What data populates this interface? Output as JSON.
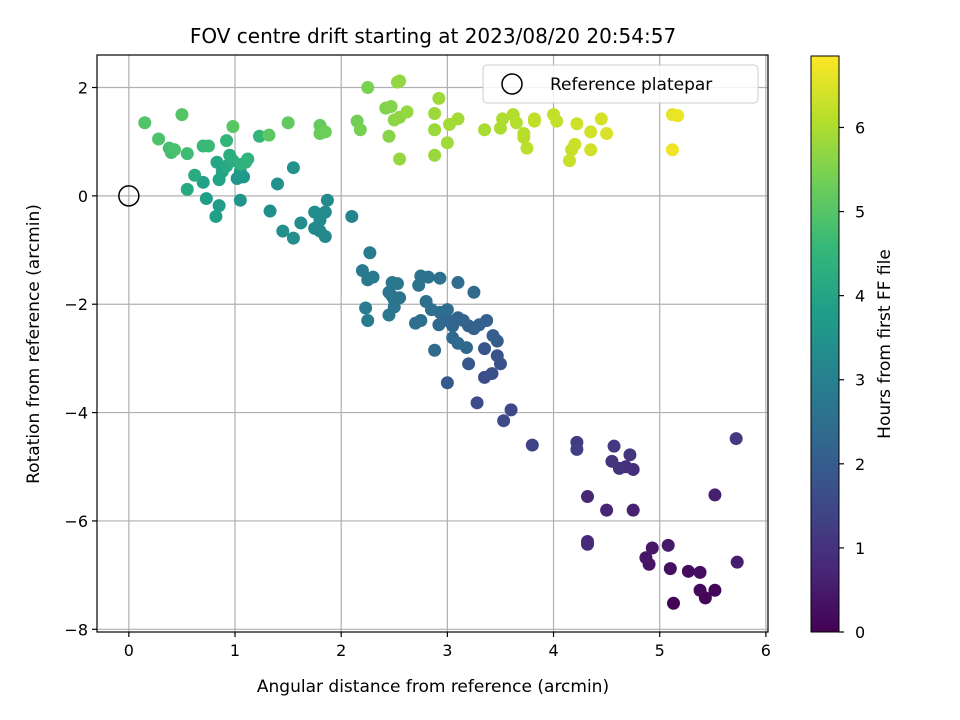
{
  "chart_data": {
    "type": "scatter",
    "title": "FOV centre drift starting at 2023/08/20 20:54:57",
    "xlabel": "Angular distance from reference (arcmin)",
    "ylabel": "Rotation from reference (arcmin)",
    "xlim": [
      -0.3,
      6.02
    ],
    "ylim": [
      -8.05,
      2.6
    ],
    "xticks": [
      0,
      1,
      2,
      3,
      4,
      5,
      6
    ],
    "yticks": [
      -8,
      -6,
      -4,
      -2,
      0,
      2
    ],
    "grid": true,
    "legend": {
      "label": "Reference platepar",
      "placement": "top-right"
    },
    "reference_point": {
      "x": 0,
      "y": 0
    },
    "colorbar": {
      "label": "Hours from first FF file",
      "range": [
        0,
        6.85
      ],
      "ticks": [
        0,
        1,
        2,
        3,
        4,
        5,
        6
      ],
      "colormap": "viridis",
      "colormap_stops": [
        "#440154",
        "#482878",
        "#3e4989",
        "#31688e",
        "#26828e",
        "#1f9e89",
        "#35b779",
        "#6ece58",
        "#b5de2b",
        "#fde725"
      ]
    },
    "points": [
      {
        "x": 5.13,
        "y": -7.52,
        "h": 0.05
      },
      {
        "x": 5.43,
        "y": -7.42,
        "h": 0.1
      },
      {
        "x": 5.52,
        "y": -7.28,
        "h": 0.12
      },
      {
        "x": 5.38,
        "y": -7.28,
        "h": 0.15
      },
      {
        "x": 5.27,
        "y": -6.93,
        "h": 0.2
      },
      {
        "x": 5.38,
        "y": -6.95,
        "h": 0.25
      },
      {
        "x": 5.1,
        "y": -6.88,
        "h": 0.3
      },
      {
        "x": 4.9,
        "y": -6.8,
        "h": 0.35
      },
      {
        "x": 4.87,
        "y": -6.68,
        "h": 0.4
      },
      {
        "x": 4.93,
        "y": -6.5,
        "h": 0.45
      },
      {
        "x": 5.08,
        "y": -6.45,
        "h": 0.5
      },
      {
        "x": 5.73,
        "y": -6.76,
        "h": 0.55
      },
      {
        "x": 5.52,
        "y": -5.52,
        "h": 0.6
      },
      {
        "x": 4.75,
        "y": -5.8,
        "h": 0.65
      },
      {
        "x": 4.5,
        "y": -5.8,
        "h": 0.7
      },
      {
        "x": 4.32,
        "y": -5.55,
        "h": 0.75
      },
      {
        "x": 4.32,
        "y": -6.38,
        "h": 0.8
      },
      {
        "x": 4.32,
        "y": -6.43,
        "h": 0.85
      },
      {
        "x": 4.75,
        "y": -5.05,
        "h": 0.9
      },
      {
        "x": 4.68,
        "y": -5.0,
        "h": 0.95
      },
      {
        "x": 4.62,
        "y": -5.03,
        "h": 1.0
      },
      {
        "x": 4.55,
        "y": -4.9,
        "h": 1.05
      },
      {
        "x": 4.72,
        "y": -4.78,
        "h": 1.1
      },
      {
        "x": 4.57,
        "y": -4.62,
        "h": 1.15
      },
      {
        "x": 5.72,
        "y": -4.48,
        "h": 1.2
      },
      {
        "x": 4.22,
        "y": -4.55,
        "h": 1.25
      },
      {
        "x": 4.22,
        "y": -4.68,
        "h": 1.3
      },
      {
        "x": 3.8,
        "y": -4.6,
        "h": 1.4
      },
      {
        "x": 3.6,
        "y": -3.95,
        "h": 1.5
      },
      {
        "x": 3.53,
        "y": -4.15,
        "h": 1.55
      },
      {
        "x": 3.28,
        "y": -3.82,
        "h": 1.6
      },
      {
        "x": 3.35,
        "y": -3.35,
        "h": 1.65
      },
      {
        "x": 3.42,
        "y": -3.28,
        "h": 1.7
      },
      {
        "x": 3.5,
        "y": -3.1,
        "h": 1.75
      },
      {
        "x": 3.47,
        "y": -2.95,
        "h": 1.8
      },
      {
        "x": 3.35,
        "y": -2.82,
        "h": 1.85
      },
      {
        "x": 3.2,
        "y": -3.1,
        "h": 1.9
      },
      {
        "x": 3.0,
        "y": -3.45,
        "h": 1.95
      },
      {
        "x": 3.47,
        "y": -2.68,
        "h": 2.0
      },
      {
        "x": 3.43,
        "y": -2.58,
        "h": 2.05
      },
      {
        "x": 3.37,
        "y": -2.3,
        "h": 2.1
      },
      {
        "x": 3.3,
        "y": -2.38,
        "h": 2.12
      },
      {
        "x": 3.25,
        "y": -2.45,
        "h": 2.14
      },
      {
        "x": 3.2,
        "y": -2.4,
        "h": 2.16
      },
      {
        "x": 3.15,
        "y": -2.3,
        "h": 2.18
      },
      {
        "x": 3.1,
        "y": -2.25,
        "h": 2.2
      },
      {
        "x": 3.05,
        "y": -2.4,
        "h": 2.22
      },
      {
        "x": 3.02,
        "y": -2.32,
        "h": 2.24
      },
      {
        "x": 2.98,
        "y": -2.2,
        "h": 2.26
      },
      {
        "x": 2.92,
        "y": -2.38,
        "h": 2.28
      },
      {
        "x": 3.18,
        "y": -2.8,
        "h": 2.3
      },
      {
        "x": 3.1,
        "y": -2.72,
        "h": 2.32
      },
      {
        "x": 3.05,
        "y": -2.62,
        "h": 2.34
      },
      {
        "x": 2.88,
        "y": -2.85,
        "h": 2.36
      },
      {
        "x": 3.25,
        "y": -1.78,
        "h": 2.38
      },
      {
        "x": 3.1,
        "y": -1.6,
        "h": 2.4
      },
      {
        "x": 3.0,
        "y": -2.1,
        "h": 2.42
      },
      {
        "x": 2.93,
        "y": -2.15,
        "h": 2.44
      },
      {
        "x": 2.85,
        "y": -2.1,
        "h": 2.46
      },
      {
        "x": 2.8,
        "y": -1.95,
        "h": 2.48
      },
      {
        "x": 2.75,
        "y": -2.3,
        "h": 2.5
      },
      {
        "x": 2.7,
        "y": -2.35,
        "h": 2.52
      },
      {
        "x": 2.93,
        "y": -1.52,
        "h": 2.54
      },
      {
        "x": 2.82,
        "y": -1.5,
        "h": 2.56
      },
      {
        "x": 2.75,
        "y": -1.48,
        "h": 2.58
      },
      {
        "x": 2.73,
        "y": -1.65,
        "h": 2.6
      },
      {
        "x": 2.55,
        "y": -1.88,
        "h": 2.62
      },
      {
        "x": 2.5,
        "y": -1.92,
        "h": 2.64
      },
      {
        "x": 2.48,
        "y": -1.85,
        "h": 2.66
      },
      {
        "x": 2.45,
        "y": -1.78,
        "h": 2.68
      },
      {
        "x": 2.5,
        "y": -2.05,
        "h": 2.7
      },
      {
        "x": 2.45,
        "y": -2.2,
        "h": 2.72
      },
      {
        "x": 2.53,
        "y": -1.62,
        "h": 2.74
      },
      {
        "x": 2.48,
        "y": -1.6,
        "h": 2.76
      },
      {
        "x": 2.3,
        "y": -1.5,
        "h": 2.78
      },
      {
        "x": 2.25,
        "y": -1.55,
        "h": 2.8
      },
      {
        "x": 2.2,
        "y": -1.38,
        "h": 2.82
      },
      {
        "x": 2.27,
        "y": -1.05,
        "h": 2.84
      },
      {
        "x": 2.25,
        "y": -2.3,
        "h": 2.86
      },
      {
        "x": 2.23,
        "y": -2.07,
        "h": 2.88
      },
      {
        "x": 2.1,
        "y": -0.38,
        "h": 3.1
      },
      {
        "x": 1.85,
        "y": -0.75,
        "h": 3.2
      },
      {
        "x": 1.8,
        "y": -0.65,
        "h": 3.22
      },
      {
        "x": 1.75,
        "y": -0.6,
        "h": 3.24
      },
      {
        "x": 1.8,
        "y": -0.45,
        "h": 3.26
      },
      {
        "x": 1.85,
        "y": -0.3,
        "h": 3.28
      },
      {
        "x": 1.87,
        "y": -0.08,
        "h": 3.3
      },
      {
        "x": 1.75,
        "y": -0.3,
        "h": 3.32
      },
      {
        "x": 1.62,
        "y": -0.5,
        "h": 3.34
      },
      {
        "x": 1.55,
        "y": -0.78,
        "h": 3.36
      },
      {
        "x": 1.45,
        "y": -0.65,
        "h": 3.38
      },
      {
        "x": 1.33,
        "y": -0.28,
        "h": 3.4
      },
      {
        "x": 1.4,
        "y": 0.22,
        "h": 3.45
      },
      {
        "x": 1.55,
        "y": 0.52,
        "h": 3.5
      },
      {
        "x": 1.05,
        "y": -0.08,
        "h": 3.55
      },
      {
        "x": 1.02,
        "y": 0.32,
        "h": 3.6
      },
      {
        "x": 1.08,
        "y": 0.35,
        "h": 3.65
      },
      {
        "x": 1.05,
        "y": 0.45,
        "h": 3.7
      },
      {
        "x": 0.85,
        "y": -0.18,
        "h": 3.75
      },
      {
        "x": 0.82,
        "y": -0.38,
        "h": 3.8
      },
      {
        "x": 0.73,
        "y": -0.05,
        "h": 3.85
      },
      {
        "x": 0.7,
        "y": 0.25,
        "h": 3.9
      },
      {
        "x": 0.85,
        "y": 0.3,
        "h": 3.95
      },
      {
        "x": 0.88,
        "y": 0.45,
        "h": 4.0
      },
      {
        "x": 0.83,
        "y": 0.62,
        "h": 4.05
      },
      {
        "x": 0.92,
        "y": 0.55,
        "h": 4.1
      },
      {
        "x": 0.55,
        "y": 0.12,
        "h": 4.15
      },
      {
        "x": 0.62,
        "y": 0.38,
        "h": 4.2
      },
      {
        "x": 0.95,
        "y": 0.75,
        "h": 4.25
      },
      {
        "x": 0.98,
        "y": 0.65,
        "h": 4.3
      },
      {
        "x": 1.05,
        "y": 0.58,
        "h": 4.35
      },
      {
        "x": 1.1,
        "y": 0.62,
        "h": 4.4
      },
      {
        "x": 1.12,
        "y": 0.68,
        "h": 4.45
      },
      {
        "x": 0.92,
        "y": 1.02,
        "h": 4.5
      },
      {
        "x": 1.23,
        "y": 1.1,
        "h": 4.55
      },
      {
        "x": 0.7,
        "y": 0.92,
        "h": 4.6
      },
      {
        "x": 0.75,
        "y": 0.92,
        "h": 4.65
      },
      {
        "x": 0.55,
        "y": 0.78,
        "h": 4.7
      },
      {
        "x": 0.4,
        "y": 0.8,
        "h": 4.75
      },
      {
        "x": 0.38,
        "y": 0.88,
        "h": 4.8
      },
      {
        "x": 0.43,
        "y": 0.85,
        "h": 4.85
      },
      {
        "x": 0.28,
        "y": 1.05,
        "h": 4.9
      },
      {
        "x": 0.15,
        "y": 1.35,
        "h": 4.95
      },
      {
        "x": 0.5,
        "y": 1.5,
        "h": 5.0
      },
      {
        "x": 0.98,
        "y": 1.28,
        "h": 5.05
      },
      {
        "x": 1.32,
        "y": 1.12,
        "h": 5.1
      },
      {
        "x": 1.5,
        "y": 1.35,
        "h": 5.15
      },
      {
        "x": 1.8,
        "y": 1.3,
        "h": 5.2
      },
      {
        "x": 1.8,
        "y": 1.15,
        "h": 5.25
      },
      {
        "x": 1.85,
        "y": 1.18,
        "h": 5.3
      },
      {
        "x": 2.15,
        "y": 1.38,
        "h": 5.35
      },
      {
        "x": 2.18,
        "y": 1.22,
        "h": 5.4
      },
      {
        "x": 2.25,
        "y": 2.0,
        "h": 5.45
      },
      {
        "x": 2.42,
        "y": 1.62,
        "h": 5.5
      },
      {
        "x": 2.47,
        "y": 1.65,
        "h": 5.55
      },
      {
        "x": 2.45,
        "y": 1.1,
        "h": 5.6
      },
      {
        "x": 2.5,
        "y": 1.4,
        "h": 5.65
      },
      {
        "x": 2.55,
        "y": 1.45,
        "h": 5.68
      },
      {
        "x": 2.53,
        "y": 2.1,
        "h": 5.7
      },
      {
        "x": 2.55,
        "y": 2.12,
        "h": 5.72
      },
      {
        "x": 2.62,
        "y": 1.55,
        "h": 5.74
      },
      {
        "x": 2.55,
        "y": 0.68,
        "h": 5.76
      },
      {
        "x": 2.88,
        "y": 0.75,
        "h": 5.78
      },
      {
        "x": 2.88,
        "y": 1.22,
        "h": 5.8
      },
      {
        "x": 2.88,
        "y": 1.52,
        "h": 5.82
      },
      {
        "x": 2.92,
        "y": 1.8,
        "h": 5.84
      },
      {
        "x": 3.0,
        "y": 0.98,
        "h": 5.86
      },
      {
        "x": 3.02,
        "y": 1.32,
        "h": 5.88
      },
      {
        "x": 3.1,
        "y": 1.42,
        "h": 5.9
      },
      {
        "x": 3.35,
        "y": 1.22,
        "h": 5.95
      },
      {
        "x": 3.5,
        "y": 1.25,
        "h": 6.0
      },
      {
        "x": 3.52,
        "y": 1.42,
        "h": 6.02
      },
      {
        "x": 3.62,
        "y": 1.5,
        "h": 6.05
      },
      {
        "x": 3.65,
        "y": 1.35,
        "h": 6.08
      },
      {
        "x": 3.72,
        "y": 1.15,
        "h": 6.1
      },
      {
        "x": 3.72,
        "y": 1.08,
        "h": 6.12
      },
      {
        "x": 3.75,
        "y": 0.88,
        "h": 6.15
      },
      {
        "x": 3.82,
        "y": 1.38,
        "h": 6.18
      },
      {
        "x": 3.82,
        "y": 1.42,
        "h": 6.2
      },
      {
        "x": 4.0,
        "y": 1.5,
        "h": 6.22
      },
      {
        "x": 4.03,
        "y": 1.38,
        "h": 6.25
      },
      {
        "x": 4.15,
        "y": 0.65,
        "h": 6.28
      },
      {
        "x": 4.17,
        "y": 0.85,
        "h": 6.3
      },
      {
        "x": 4.2,
        "y": 0.95,
        "h": 6.32
      },
      {
        "x": 4.22,
        "y": 1.33,
        "h": 6.35
      },
      {
        "x": 4.35,
        "y": 0.85,
        "h": 6.38
      },
      {
        "x": 4.35,
        "y": 1.18,
        "h": 6.4
      },
      {
        "x": 4.45,
        "y": 1.42,
        "h": 6.42
      },
      {
        "x": 4.5,
        "y": 1.15,
        "h": 6.45
      },
      {
        "x": 5.12,
        "y": 1.5,
        "h": 6.6
      },
      {
        "x": 5.17,
        "y": 1.48,
        "h": 6.65
      },
      {
        "x": 5.12,
        "y": 0.85,
        "h": 6.7
      }
    ]
  }
}
